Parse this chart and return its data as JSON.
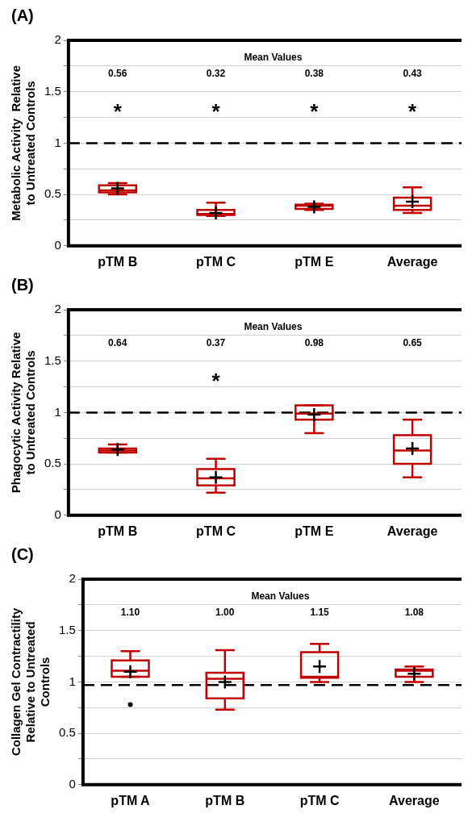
{
  "chart_data": [
    {
      "type": "box",
      "title": "(A)",
      "ylabel": "Metabolic Activity  Relative\nto Untreated Controls",
      "categories": [
        "pTM B",
        "pTM C",
        "pTM E",
        "Average"
      ],
      "color": "#c00000",
      "ylim": [
        0,
        2
      ],
      "yticks": [
        0,
        {
          "value": 0.25,
          "label": null
        },
        0.5,
        {
          "value": 0.75,
          "label": null
        },
        1,
        {
          "value": 1.25,
          "label": null
        },
        1.5,
        {
          "value": 1.75,
          "label": null
        },
        2
      ],
      "grid": true,
      "boxes": [
        {
          "low": 0.5,
          "q1": 0.52,
          "median": 0.54,
          "q3": 0.59,
          "high": 0.61,
          "mean": 0.56
        },
        {
          "low": 0.29,
          "q1": 0.3,
          "median": 0.31,
          "q3": 0.35,
          "high": 0.42,
          "mean": 0.32
        },
        {
          "low": 0.35,
          "q1": 0.36,
          "median": 0.39,
          "q3": 0.4,
          "high": 0.41,
          "mean": 0.38
        },
        {
          "low": 0.32,
          "q1": 0.35,
          "median": 0.39,
          "q3": 0.47,
          "high": 0.57,
          "mean": 0.43
        }
      ],
      "value_labels": [
        "0.56",
        "0.32",
        "0.38",
        "0.43"
      ],
      "ref_lines": [
        {
          "axis": "y",
          "value": 1,
          "color": "#000000",
          "line_style": "dashed"
        }
      ],
      "annotations": [
        "Mean Values",
        "*",
        "*",
        "*",
        "*"
      ]
    },
    {
      "type": "box",
      "title": "(B)",
      "ylabel": "Phagocytic Activity Relative\nto Untreated Controls",
      "categories": [
        "pTM B",
        "pTM C",
        "pTM E",
        "Average"
      ],
      "color": "#c00000",
      "ylim": [
        0,
        2
      ],
      "yticks": [
        0,
        {
          "value": 0.25,
          "label": null
        },
        0.5,
        {
          "value": 0.75,
          "label": null
        },
        1,
        {
          "value": 1.25,
          "label": null
        },
        1.5,
        {
          "value": 1.75,
          "label": null
        },
        2
      ],
      "grid": true,
      "boxes": [
        {
          "low": 0.61,
          "q1": 0.61,
          "median": 0.63,
          "q3": 0.65,
          "high": 0.69,
          "mean": 0.64
        },
        {
          "low": 0.22,
          "q1": 0.29,
          "median": 0.36,
          "q3": 0.45,
          "high": 0.55,
          "mean": 0.37
        },
        {
          "low": 0.8,
          "q1": 0.93,
          "median": 0.99,
          "q3": 1.07,
          "high": 1.07,
          "mean": 0.98
        },
        {
          "low": 0.37,
          "q1": 0.5,
          "median": 0.63,
          "q3": 0.78,
          "high": 0.93,
          "mean": 0.65
        }
      ],
      "value_labels": [
        "0.64",
        "0.37",
        "0.98",
        "0.65"
      ],
      "ref_lines": [
        {
          "axis": "y",
          "value": 1,
          "color": "#000000",
          "line_style": "dashed"
        }
      ],
      "annotations": [
        "Mean Values",
        "*"
      ]
    },
    {
      "type": "box",
      "title": "(C)",
      "ylabel": "Collagen Gel Contractility\nRelative to Untreated\nControls",
      "categories": [
        "pTM A",
        "pTM B",
        "pTM C",
        "Average"
      ],
      "color": "#c00000",
      "ylim": [
        0,
        2
      ],
      "yticks": [
        0,
        {
          "value": 0.25,
          "label": null
        },
        0.5,
        {
          "value": 0.75,
          "label": null
        },
        1,
        {
          "value": 1.25,
          "label": null
        },
        1.5,
        {
          "value": 1.75,
          "label": null
        },
        2
      ],
      "grid": true,
      "boxes": [
        {
          "low": 1.05,
          "q1": 1.05,
          "median": 1.11,
          "q3": 1.21,
          "high": 1.3,
          "mean": 1.1,
          "outliers": [
            0.78
          ]
        },
        {
          "low": 0.73,
          "q1": 0.84,
          "median": 1.03,
          "q3": 1.09,
          "high": 1.31,
          "mean": 1.0
        },
        {
          "low": 1.0,
          "q1": 1.04,
          "median": 1.05,
          "q3": 1.29,
          "high": 1.37,
          "mean": 1.15
        },
        {
          "low": 1.0,
          "q1": 1.05,
          "median": 1.11,
          "q3": 1.12,
          "high": 1.15,
          "mean": 1.08
        }
      ],
      "value_labels": [
        "1.10",
        "1.00",
        "1.15",
        "1.08"
      ],
      "ref_lines": [
        {
          "axis": "y",
          "value": 0.97,
          "color": "#000000",
          "line_style": "dashed"
        }
      ],
      "annotations": [
        "Mean Values"
      ]
    }
  ]
}
